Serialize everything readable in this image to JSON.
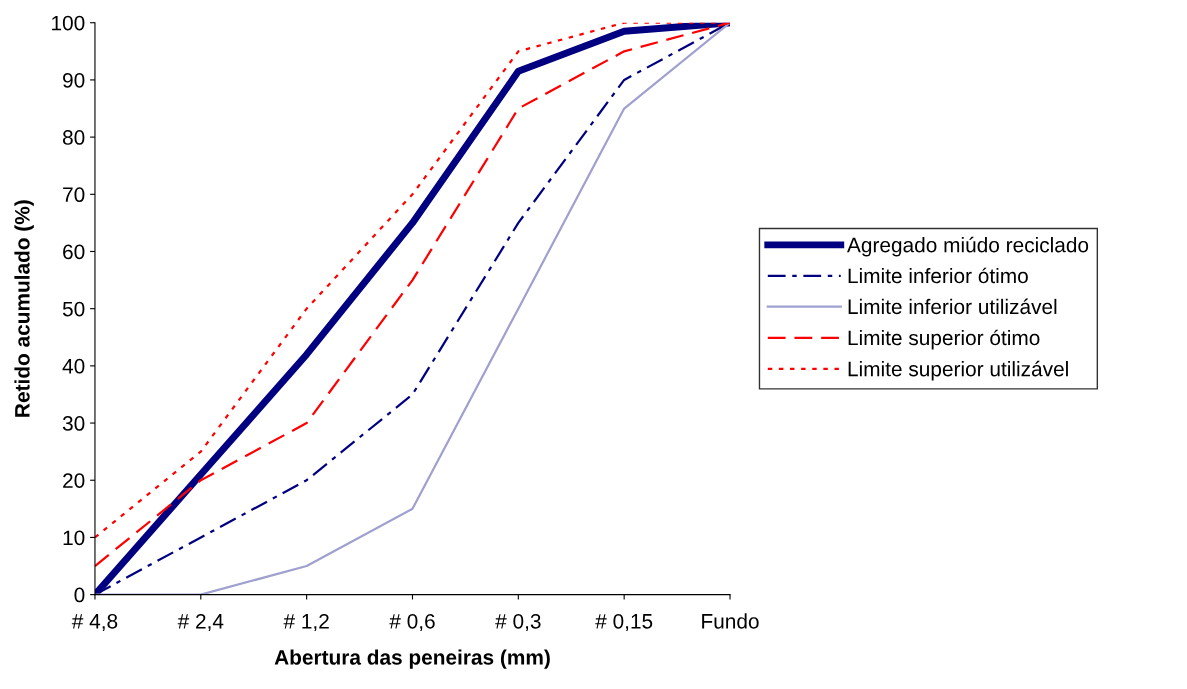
{
  "chart_data": {
    "type": "line",
    "xlabel": "Abertura das peneiras (mm)",
    "ylabel": "Retido acumulado (%)",
    "categories": [
      "# 4,8",
      "# 2,4",
      "# 1,2",
      "# 0,6",
      "# 0,3",
      "# 0,15",
      "Fundo"
    ],
    "series": [
      {
        "name": "Agregado miúdo reciclado",
        "color": "#000080",
        "line_style": "solid",
        "values": [
          0,
          21,
          42,
          65,
          91.5,
          98.5,
          100
        ]
      },
      {
        "name": "Limite inferior ótimo",
        "color": "#000080",
        "line_style": "dashdot",
        "values": [
          0,
          10,
          20,
          35,
          65,
          90,
          100
        ]
      },
      {
        "name": "Limite inferior utilizável",
        "color": "#a0a0d0",
        "line_style": "solid",
        "values": [
          0,
          0,
          5,
          15,
          50,
          85,
          100
        ]
      },
      {
        "name": "Limite superior ótimo",
        "color": "#ff0000",
        "line_style": "dashed",
        "values": [
          5,
          20,
          30,
          55,
          85,
          95,
          100
        ]
      },
      {
        "name": "Limite superior utilizável",
        "color": "#ff0000",
        "line_style": "dotted",
        "values": [
          10,
          25,
          50,
          70,
          95,
          100,
          100
        ]
      }
    ],
    "ylim": [
      0,
      100
    ],
    "yticks": [
      0,
      10,
      20,
      30,
      40,
      50,
      60,
      70,
      80,
      90,
      100
    ],
    "grid": false,
    "legend": "right",
    "marker": "none"
  }
}
